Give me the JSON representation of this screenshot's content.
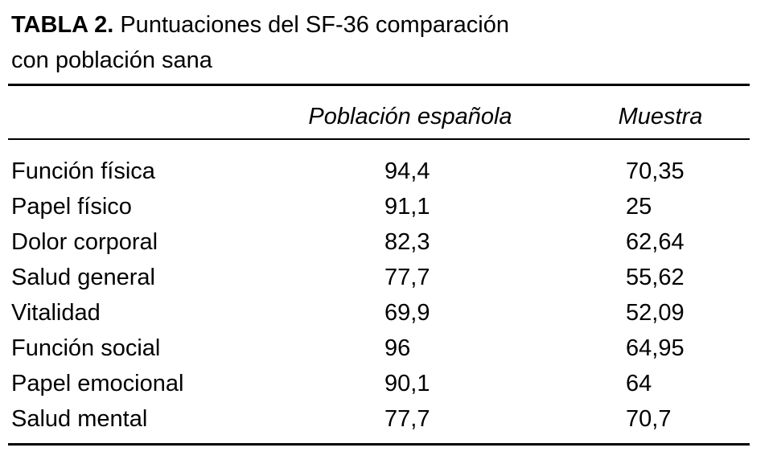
{
  "title": {
    "label": "TABLA 2.",
    "lines": [
      "Puntuaciones del SF-36 comparación",
      "con población sana"
    ]
  },
  "table": {
    "header": [
      "",
      "Población española",
      "Muestra"
    ],
    "rows": [
      [
        "Función física",
        "94,4",
        "70,35"
      ],
      [
        "Papel físico",
        "91,1",
        "25"
      ],
      [
        "Dolor corporal",
        "82,3",
        "62,64"
      ],
      [
        "Salud general",
        "77,7",
        "55,62"
      ],
      [
        "Vitalidad",
        "69,9",
        "52,09"
      ],
      [
        "Función social",
        "96",
        "64,95"
      ],
      [
        "Papel emocional",
        "90,1",
        "64"
      ],
      [
        "Salud mental",
        "77,7",
        "70,7"
      ]
    ]
  }
}
